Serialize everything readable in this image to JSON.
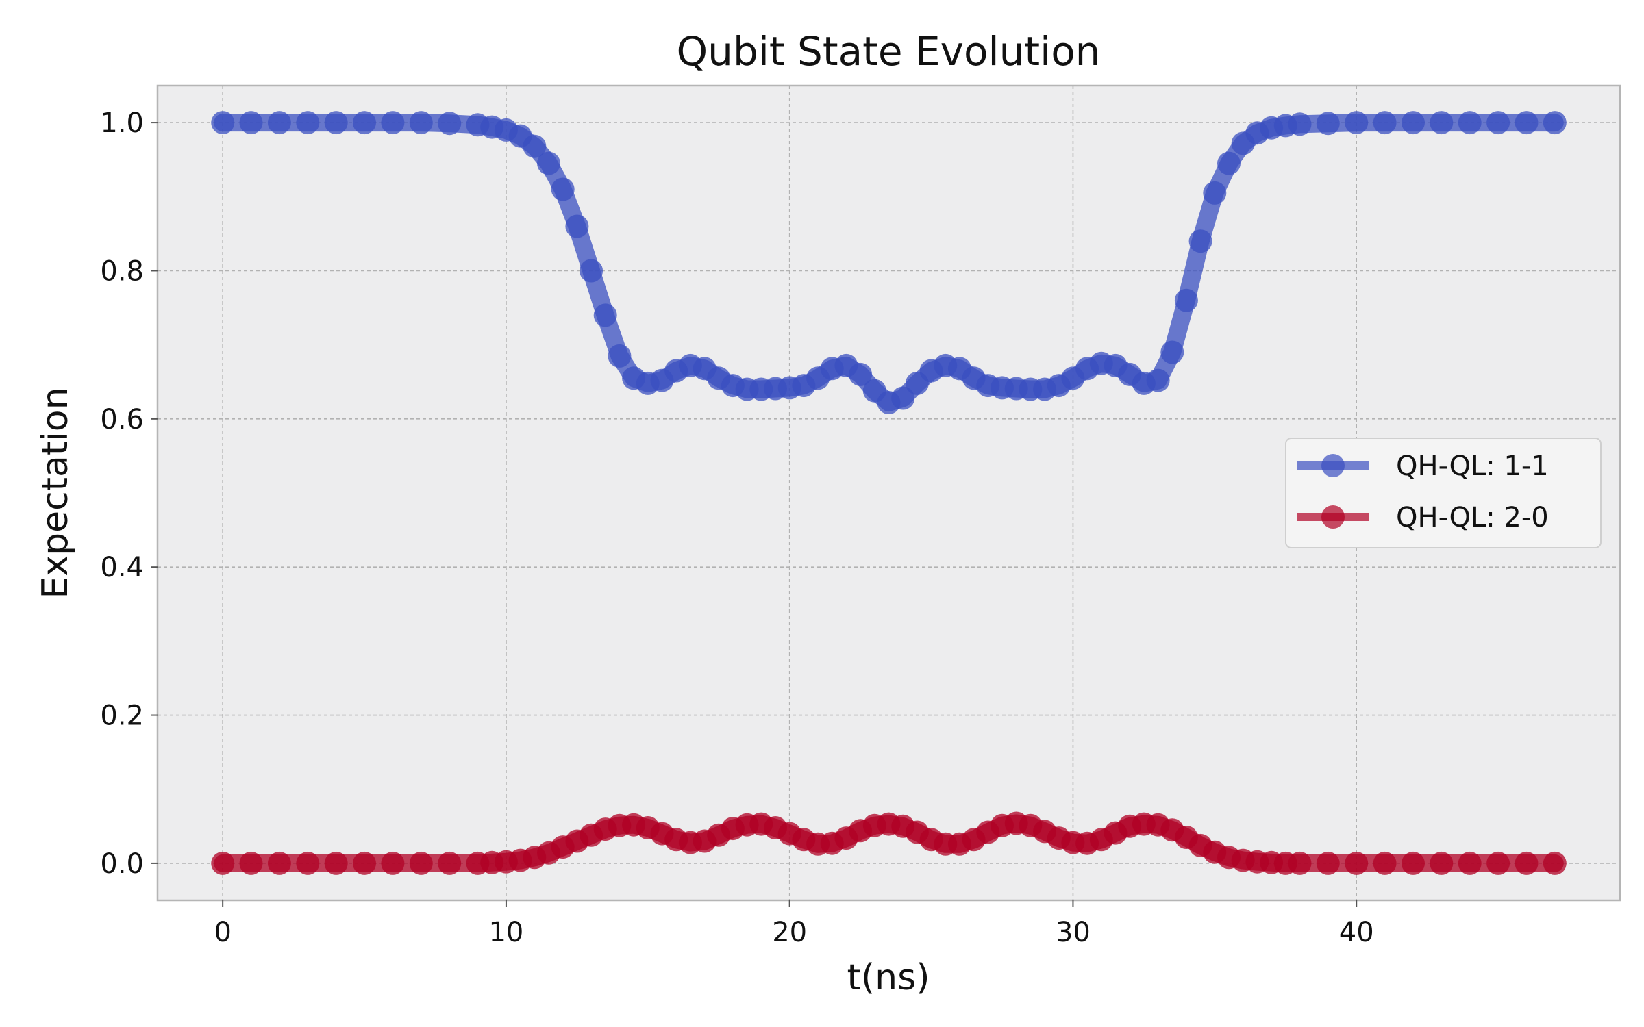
{
  "chart_data": {
    "type": "line",
    "title": "Qubit State Evolution",
    "xlabel": "t(ns)",
    "ylabel": "Expectation",
    "xlim": [
      -2.3,
      49.3
    ],
    "ylim": [
      -0.05,
      1.05
    ],
    "xticks": [
      0,
      10,
      20,
      30,
      40
    ],
    "yticks": [
      0.0,
      0.2,
      0.4,
      0.6,
      0.8,
      1.0
    ],
    "xtick_labels": [
      "0",
      "10",
      "20",
      "30",
      "40"
    ],
    "ytick_labels": [
      "0.0",
      "0.2",
      "0.4",
      "0.6",
      "0.8",
      "1.0"
    ],
    "grid": true,
    "legend_position": "center-right",
    "series": [
      {
        "name": "QH-QL: 1-1",
        "color": "#3a4fc0",
        "x": [
          0,
          1,
          2,
          3,
          4,
          5,
          6,
          7,
          8,
          9,
          9.5,
          10,
          10.5,
          11,
          11.5,
          12,
          12.5,
          13,
          13.5,
          14,
          14.5,
          15,
          15.5,
          16,
          16.5,
          17,
          17.5,
          18,
          18.5,
          19,
          19.5,
          20,
          20.5,
          21,
          21.5,
          22,
          22.5,
          23,
          23.5,
          24,
          24.5,
          25,
          25.5,
          26,
          26.5,
          27,
          27.5,
          28,
          28.5,
          29,
          29.5,
          30,
          30.5,
          31,
          31.5,
          32,
          32.5,
          33,
          33.5,
          34,
          34.5,
          35,
          35.5,
          36,
          36.5,
          37,
          37.5,
          38,
          39,
          40,
          41,
          42,
          43,
          44,
          45,
          46,
          47
        ],
        "y": [
          1.0,
          1.0,
          1.0,
          1.0,
          1.0,
          1.0,
          1.0,
          1.0,
          0.999,
          0.997,
          0.994,
          0.99,
          0.982,
          0.968,
          0.945,
          0.91,
          0.86,
          0.8,
          0.74,
          0.685,
          0.655,
          0.648,
          0.652,
          0.665,
          0.672,
          0.668,
          0.655,
          0.645,
          0.64,
          0.64,
          0.641,
          0.642,
          0.645,
          0.655,
          0.668,
          0.672,
          0.66,
          0.638,
          0.622,
          0.628,
          0.648,
          0.665,
          0.672,
          0.668,
          0.655,
          0.645,
          0.642,
          0.641,
          0.64,
          0.64,
          0.645,
          0.655,
          0.668,
          0.675,
          0.672,
          0.66,
          0.648,
          0.652,
          0.69,
          0.76,
          0.84,
          0.905,
          0.945,
          0.972,
          0.986,
          0.993,
          0.996,
          0.998,
          0.999,
          1.0,
          1.0,
          1.0,
          1.0,
          1.0,
          1.0,
          1.0,
          1.0
        ]
      },
      {
        "name": "QH-QL: 2-0",
        "color": "#b00024",
        "x": [
          0,
          1,
          2,
          3,
          4,
          5,
          6,
          7,
          8,
          9,
          9.5,
          10,
          10.5,
          11,
          11.5,
          12,
          12.5,
          13,
          13.5,
          14,
          14.5,
          15,
          15.5,
          16,
          16.5,
          17,
          17.5,
          18,
          18.5,
          19,
          19.5,
          20,
          20.5,
          21,
          21.5,
          22,
          22.5,
          23,
          23.5,
          24,
          24.5,
          25,
          25.5,
          26,
          26.5,
          27,
          27.5,
          28,
          28.5,
          29,
          29.5,
          30,
          30.5,
          31,
          31.5,
          32,
          32.5,
          33,
          33.5,
          34,
          34.5,
          35,
          35.5,
          36,
          36.5,
          37,
          37.5,
          38,
          39,
          40,
          41,
          42,
          43,
          44,
          45,
          46,
          47
        ],
        "y": [
          0.0,
          0.0,
          0.0,
          0.0,
          0.0,
          0.0,
          0.0,
          0.0,
          0.0,
          0.0,
          0.001,
          0.002,
          0.004,
          0.008,
          0.014,
          0.022,
          0.03,
          0.038,
          0.046,
          0.051,
          0.052,
          0.048,
          0.04,
          0.032,
          0.028,
          0.03,
          0.038,
          0.047,
          0.052,
          0.053,
          0.048,
          0.04,
          0.032,
          0.026,
          0.027,
          0.034,
          0.044,
          0.051,
          0.053,
          0.05,
          0.042,
          0.032,
          0.026,
          0.026,
          0.032,
          0.042,
          0.051,
          0.054,
          0.051,
          0.043,
          0.034,
          0.028,
          0.027,
          0.032,
          0.041,
          0.05,
          0.053,
          0.052,
          0.045,
          0.035,
          0.024,
          0.015,
          0.008,
          0.004,
          0.002,
          0.001,
          0.0,
          0.0,
          0.0,
          0.0,
          0.0,
          0.0,
          0.0,
          0.0,
          0.0,
          0.0,
          0.0
        ]
      }
    ]
  }
}
